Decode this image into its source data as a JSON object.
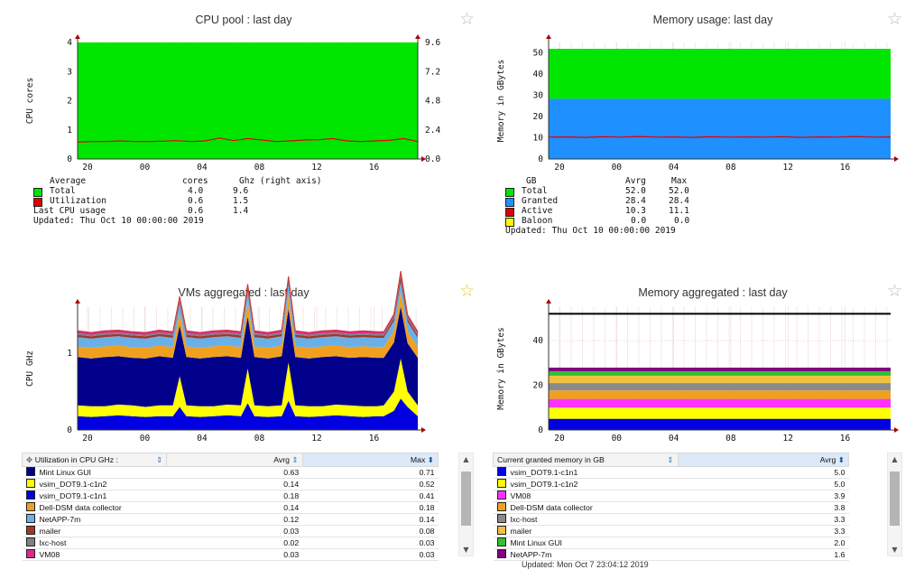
{
  "chart_data": [
    {
      "type": "area",
      "title": "CPU pool : last day",
      "ylabel": "CPU cores",
      "ylim": [
        0,
        4
      ],
      "y_ticks": [
        "0",
        "1",
        "2",
        "3",
        "4"
      ],
      "y2lim": [
        0,
        9.6
      ],
      "y2_ticks": [
        "0.0",
        "2.4",
        "4.8",
        "7.2",
        "9.6"
      ],
      "x_ticks": [
        "20",
        "00",
        "04",
        "08",
        "12",
        "16"
      ],
      "grid": true,
      "series": [
        {
          "name": "Total",
          "color": "#00e600",
          "values": [
            4.0,
            4.0
          ]
        },
        {
          "name": "Utilization",
          "color": "#e00000",
          "values": [
            0.58,
            0.6,
            0.6,
            0.62,
            0.6,
            0.6,
            0.61,
            0.63,
            0.6,
            0.62,
            0.72,
            0.63,
            0.7,
            0.65,
            0.6,
            0.62,
            0.65,
            0.66,
            0.7,
            0.62,
            0.6,
            0.62,
            0.64,
            0.7,
            0.6
          ]
        }
      ],
      "legend": {
        "header": [
          "Average",
          "cores",
          "Ghz (right axis)"
        ],
        "rows": [
          {
            "swatch": "#00e600",
            "label": "Total",
            "cores": "4.0",
            "ghz": "9.6"
          },
          {
            "swatch": "#e00000",
            "label": "Utilization",
            "cores": "0.6",
            "ghz": "1.5"
          },
          {
            "swatch": "",
            "label": "Last CPU usage",
            "cores": "0.6",
            "ghz": "1.4"
          }
        ],
        "updated": "Updated: Thu Oct 10 00:00:00 2019"
      },
      "star_icon": "☆"
    },
    {
      "type": "area",
      "title": "Memory usage: last day",
      "ylabel": "Memory in GBytes",
      "ylim": [
        0,
        55
      ],
      "y_ticks": [
        "0",
        "10",
        "20",
        "30",
        "40",
        "50"
      ],
      "x_ticks": [
        "20",
        "00",
        "04",
        "08",
        "12",
        "16"
      ],
      "grid": true,
      "series": [
        {
          "name": "Total",
          "color": "#00e600",
          "values": [
            52.0,
            52.0
          ]
        },
        {
          "name": "Granted",
          "color": "#1e90ff",
          "values": [
            28.4,
            28.4
          ]
        },
        {
          "name": "Active",
          "color": "#e00000",
          "values": [
            10.3,
            10.4,
            10.2,
            10.5,
            10.3,
            10.6,
            10.3,
            10.4,
            10.2,
            10.5,
            10.3,
            10.4,
            10.3,
            10.5,
            10.2,
            10.4,
            10.3,
            10.6,
            10.3,
            10.4
          ]
        },
        {
          "name": "Baloon",
          "color": "#ffff00",
          "values": [
            0.0,
            0.0
          ]
        }
      ],
      "legend": {
        "header": [
          "GB",
          "Avrg",
          "Max"
        ],
        "rows": [
          {
            "swatch": "#00e600",
            "label": "Total",
            "avrg": "52.0",
            "max": "52.0"
          },
          {
            "swatch": "#1e90ff",
            "label": "Granted",
            "avrg": "28.4",
            "max": "28.4"
          },
          {
            "swatch": "#e00000",
            "label": "Active",
            "avrg": "10.3",
            "max": "11.1"
          },
          {
            "swatch": "#ffff00",
            "label": "Baloon",
            "avrg": "0.0",
            "max": "0.0"
          }
        ],
        "updated": "Updated: Thu Oct 10 00:00:00 2019"
      },
      "star_icon": "☆"
    },
    {
      "type": "area",
      "title": "VMs aggregated : last day",
      "ylabel": "CPU GHz",
      "ylim": [
        0,
        1.6
      ],
      "y_ticks": [
        "0",
        "1"
      ],
      "x_ticks": [
        "20",
        "00",
        "04",
        "08",
        "12",
        "16"
      ],
      "grid": true,
      "x": [
        0,
        0.04,
        0.08,
        0.12,
        0.16,
        0.2,
        0.24,
        0.28,
        0.3,
        0.32,
        0.36,
        0.4,
        0.44,
        0.48,
        0.5,
        0.52,
        0.56,
        0.6,
        0.62,
        0.64,
        0.68,
        0.72,
        0.76,
        0.8,
        0.84,
        0.88,
        0.9,
        0.93,
        0.95,
        0.97,
        1.0
      ],
      "series": [
        {
          "name": "Mint Linux GUI",
          "color": "#00008b",
          "values": [
            0.63,
            0.62,
            0.64,
            0.63,
            0.62,
            0.63,
            0.64,
            0.62,
            0.66,
            0.63,
            0.62,
            0.64,
            0.63,
            0.62,
            0.68,
            0.63,
            0.62,
            0.64,
            0.7,
            0.63,
            0.62,
            0.64,
            0.63,
            0.62,
            0.64,
            0.63,
            0.62,
            0.64,
            0.68,
            0.63,
            0.62
          ]
        },
        {
          "name": "vsim_DOT9.1-c1n2",
          "color": "#ffff00",
          "values": [
            0.14,
            0.14,
            0.13,
            0.14,
            0.14,
            0.13,
            0.14,
            0.14,
            0.4,
            0.14,
            0.14,
            0.13,
            0.14,
            0.14,
            0.45,
            0.14,
            0.14,
            0.14,
            0.5,
            0.14,
            0.14,
            0.13,
            0.14,
            0.14,
            0.14,
            0.13,
            0.14,
            0.25,
            0.52,
            0.2,
            0.14
          ]
        },
        {
          "name": "vsim_DOT9.1-c1n1",
          "color": "#0000e0",
          "values": [
            0.18,
            0.17,
            0.18,
            0.19,
            0.18,
            0.17,
            0.18,
            0.18,
            0.3,
            0.18,
            0.17,
            0.18,
            0.19,
            0.18,
            0.35,
            0.18,
            0.17,
            0.18,
            0.38,
            0.18,
            0.17,
            0.18,
            0.19,
            0.18,
            0.17,
            0.18,
            0.18,
            0.25,
            0.41,
            0.3,
            0.18
          ]
        },
        {
          "name": "Dell-DSM data collector",
          "color": "#f0a020",
          "values": [
            0.14,
            0.14,
            0.14,
            0.14,
            0.14,
            0.14,
            0.14,
            0.14,
            0.16,
            0.14,
            0.14,
            0.14,
            0.14,
            0.14,
            0.18,
            0.14,
            0.14,
            0.14,
            0.18,
            0.14,
            0.14,
            0.14,
            0.14,
            0.14,
            0.14,
            0.14,
            0.14,
            0.15,
            0.18,
            0.15,
            0.14
          ]
        },
        {
          "name": "NetAPP-7m",
          "color": "#6ab0e8",
          "values": [
            0.12,
            0.12,
            0.12,
            0.12,
            0.12,
            0.12,
            0.12,
            0.12,
            0.13,
            0.12,
            0.12,
            0.12,
            0.12,
            0.12,
            0.14,
            0.12,
            0.12,
            0.12,
            0.14,
            0.12,
            0.12,
            0.12,
            0.12,
            0.12,
            0.12,
            0.12,
            0.12,
            0.13,
            0.14,
            0.13,
            0.12
          ]
        },
        {
          "name": "mailer",
          "color": "#9b3a2a",
          "values": [
            0.03,
            0.03,
            0.03,
            0.03,
            0.03,
            0.03,
            0.03,
            0.03,
            0.04,
            0.03,
            0.03,
            0.03,
            0.03,
            0.03,
            0.05,
            0.03,
            0.03,
            0.03,
            0.05,
            0.03,
            0.03,
            0.03,
            0.03,
            0.03,
            0.03,
            0.03,
            0.03,
            0.04,
            0.08,
            0.04,
            0.03
          ]
        },
        {
          "name": "lxc-host",
          "color": "#808080",
          "values": [
            0.02,
            0.02,
            0.02,
            0.02,
            0.02,
            0.02,
            0.02,
            0.02,
            0.02,
            0.02,
            0.02,
            0.02,
            0.02,
            0.02,
            0.02,
            0.02,
            0.02,
            0.02,
            0.02,
            0.02,
            0.02,
            0.02,
            0.02,
            0.02,
            0.02,
            0.02,
            0.02,
            0.02,
            0.03,
            0.02,
            0.02
          ]
        },
        {
          "name": "VM08",
          "color": "#e0288c",
          "values": [
            0.03,
            0.03,
            0.03,
            0.03,
            0.03,
            0.03,
            0.03,
            0.03,
            0.03,
            0.03,
            0.03,
            0.03,
            0.03,
            0.03,
            0.03,
            0.03,
            0.03,
            0.03,
            0.03,
            0.03,
            0.03,
            0.03,
            0.03,
            0.03,
            0.03,
            0.03,
            0.03,
            0.03,
            0.03,
            0.03,
            0.03
          ]
        }
      ],
      "table": {
        "header": {
          "name": "Utilization in CPU GHz :",
          "avrg": "Avrg",
          "max": "Max"
        },
        "rows": [
          {
            "color": "#00008b",
            "name": "Mint Linux GUI",
            "avrg": "0.63",
            "max": "0.71"
          },
          {
            "color": "#ffff00",
            "name": "vsim_DOT9.1-c1n2",
            "avrg": "0.14",
            "max": "0.52"
          },
          {
            "color": "#0000e0",
            "name": "vsim_DOT9.1-c1n1",
            "avrg": "0.18",
            "max": "0.41"
          },
          {
            "color": "#f0a020",
            "name": "Dell-DSM data collector",
            "avrg": "0.14",
            "max": "0.18"
          },
          {
            "color": "#6ab0e8",
            "name": "NetAPP-7m",
            "avrg": "0.12",
            "max": "0.14"
          },
          {
            "color": "#9b3a2a",
            "name": "mailer",
            "avrg": "0.03",
            "max": "0.08"
          },
          {
            "color": "#808080",
            "name": "lxc-host",
            "avrg": "0.02",
            "max": "0.03"
          },
          {
            "color": "#e0288c",
            "name": "VM08",
            "avrg": "0.03",
            "max": "0.03"
          }
        ]
      },
      "star_icon": "☆"
    },
    {
      "type": "area",
      "title": "Memory aggregated : last day",
      "ylabel": "Memory in GBytes",
      "ylim": [
        0,
        55
      ],
      "y_ticks": [
        "0",
        "20",
        "40"
      ],
      "x_ticks": [
        "20",
        "00",
        "04",
        "08",
        "12",
        "16"
      ],
      "grid": true,
      "series": [
        {
          "name": "vsim_DOT9.1-c1n1",
          "color": "#0000e0",
          "values": [
            5.0,
            5.0
          ]
        },
        {
          "name": "vsim_DOT9.1-c1n2",
          "color": "#ffff00",
          "values": [
            5.0,
            5.0
          ]
        },
        {
          "name": "VM08",
          "color": "#ff33ff",
          "values": [
            3.9,
            3.9
          ]
        },
        {
          "name": "Dell-DSM data collector",
          "color": "#f0a020",
          "values": [
            3.8,
            3.8
          ]
        },
        {
          "name": "lxc-host",
          "color": "#8a8a8a",
          "values": [
            3.3,
            3.3
          ]
        },
        {
          "name": "mailer",
          "color": "#f0c040",
          "values": [
            3.3,
            3.3
          ]
        },
        {
          "name": "Mint Linux GUI",
          "color": "#30c030",
          "values": [
            2.0,
            2.0
          ]
        },
        {
          "name": "NetAPP-7m",
          "color": "#800080",
          "values": [
            1.6,
            1.6
          ]
        }
      ],
      "table": {
        "header": {
          "name": "Current granted memory in GB",
          "avrg": "Avrg"
        },
        "rows": [
          {
            "color": "#0000e0",
            "name": "vsim_DOT9.1-c1n1",
            "avrg": "5.0"
          },
          {
            "color": "#ffff00",
            "name": "vsim_DOT9.1-c1n2",
            "avrg": "5.0"
          },
          {
            "color": "#ff33ff",
            "name": "VM08",
            "avrg": "3.9"
          },
          {
            "color": "#f0a020",
            "name": "Dell-DSM data collector",
            "avrg": "3.8"
          },
          {
            "color": "#8a8a8a",
            "name": "lxc-host",
            "avrg": "3.3"
          },
          {
            "color": "#f0c040",
            "name": "mailer",
            "avrg": "3.3"
          },
          {
            "color": "#30c030",
            "name": "Mint Linux GUI",
            "avrg": "2.0"
          },
          {
            "color": "#800080",
            "name": "NetAPP-7m",
            "avrg": "1.6"
          }
        ],
        "updated": "Updated: Mon Oct 7 23:04:12 2019"
      },
      "star_icon": "☆"
    }
  ]
}
